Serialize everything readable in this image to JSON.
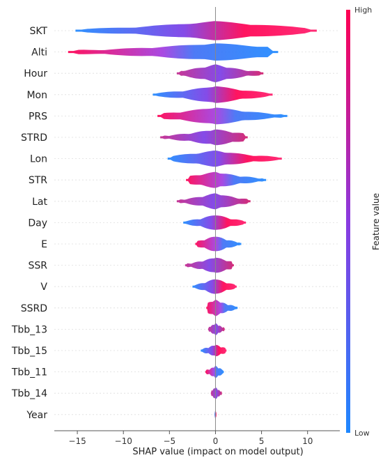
{
  "chart_data": {
    "type": "violin",
    "xlabel": "SHAP value (impact on model output)",
    "xlim": [
      -17.5,
      13.5
    ],
    "xticks": [
      -15,
      -10,
      -5,
      0,
      5,
      10
    ],
    "colorbar": {
      "title": "Feature value",
      "high_label": "High",
      "low_label": "Low",
      "low_color": "#1e88ff",
      "high_color": "#ff0052"
    },
    "features": [
      {
        "name": "SKT",
        "min": -15.2,
        "max": 11.0,
        "spread": "wide"
      },
      {
        "name": "Alti",
        "min": -16.0,
        "max": 6.8,
        "spread": "medium"
      },
      {
        "name": "Hour",
        "min": -4.2,
        "max": 5.2,
        "spread": "medium"
      },
      {
        "name": "Mon",
        "min": -6.8,
        "max": 6.2,
        "spread": "medium"
      },
      {
        "name": "PRS",
        "min": -6.3,
        "max": 7.8,
        "spread": "medium"
      },
      {
        "name": "STRD",
        "min": -6.0,
        "max": 3.5,
        "spread": "narrow"
      },
      {
        "name": "Lon",
        "min": -5.2,
        "max": 7.2,
        "spread": "narrow"
      },
      {
        "name": "STR",
        "min": -3.2,
        "max": 5.5,
        "spread": "narrow"
      },
      {
        "name": "Lat",
        "min": -4.2,
        "max": 3.8,
        "spread": "narrow"
      },
      {
        "name": "Day",
        "min": -3.5,
        "max": 3.3,
        "spread": "narrow"
      },
      {
        "name": "E",
        "min": -2.2,
        "max": 2.8,
        "spread": "narrow"
      },
      {
        "name": "SSR",
        "min": -3.3,
        "max": 2.0,
        "spread": "narrow"
      },
      {
        "name": "V",
        "min": -2.5,
        "max": 2.3,
        "spread": "narrow"
      },
      {
        "name": "SSRD",
        "min": -1.0,
        "max": 2.4,
        "spread": "narrow"
      },
      {
        "name": "Tbb_13",
        "min": -0.8,
        "max": 1.0,
        "spread": "thin"
      },
      {
        "name": "Tbb_15",
        "min": -1.6,
        "max": 1.2,
        "spread": "thin"
      },
      {
        "name": "Tbb_11",
        "min": -1.1,
        "max": 0.9,
        "spread": "thin"
      },
      {
        "name": "Tbb_14",
        "min": -0.5,
        "max": 0.7,
        "spread": "thin"
      },
      {
        "name": "Year",
        "min": -0.1,
        "max": 0.1,
        "spread": "thin"
      }
    ]
  }
}
